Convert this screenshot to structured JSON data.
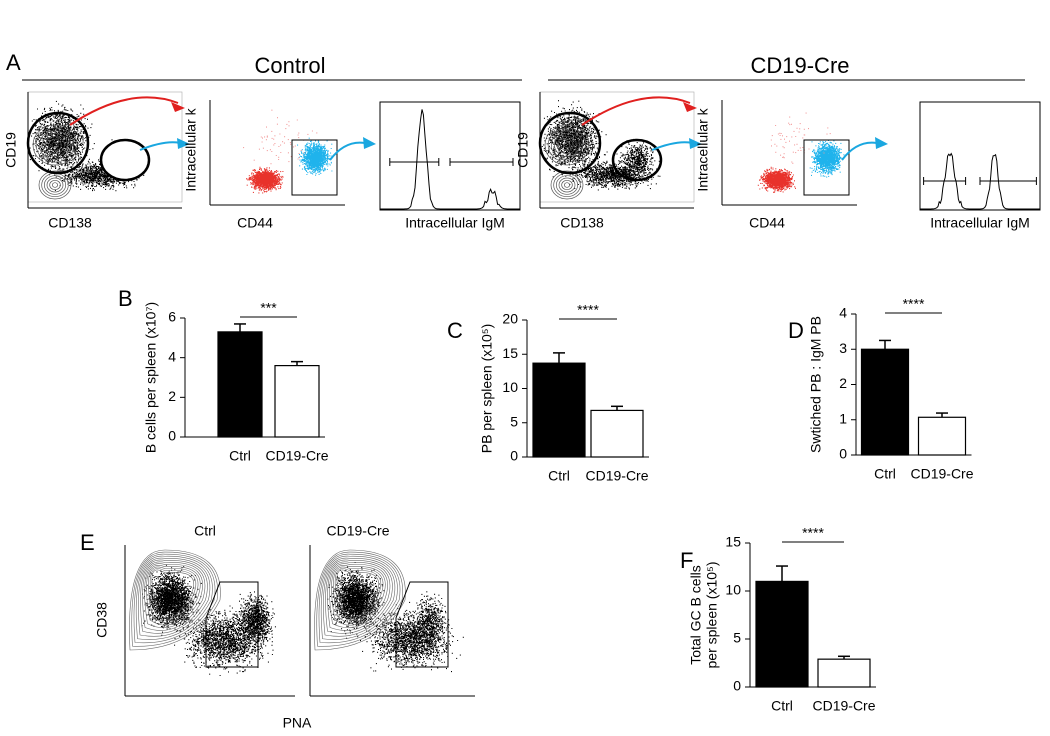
{
  "panel_a": {
    "letter": "A",
    "groups": [
      {
        "title": "Control",
        "axes": {
          "contour_y": "CD19",
          "contour_x": "CD138",
          "scatter_y": "Intracellular k",
          "scatter_x": "CD44",
          "hist_x": "Intracellular IgM"
        }
      },
      {
        "title": "CD19-Cre",
        "axes": {
          "contour_y": "CD19",
          "contour_x": "CD138",
          "scatter_y": "Intracellular k",
          "scatter_x": "CD44",
          "hist_x": "Intracellular IgM"
        }
      }
    ]
  },
  "panel_e": {
    "letter": "E",
    "plots": [
      "Ctrl",
      "CD19-Cre"
    ],
    "y_label": "CD38",
    "x_label": "PNA"
  },
  "chart_data": [
    {
      "type": "bar",
      "panel": "B",
      "ylabel": [
        "B cells per spleen (x10⁷)"
      ],
      "annotation": "***",
      "categories": [
        "Ctrl",
        "CD19-Cre"
      ],
      "values": [
        5.3,
        3.6
      ],
      "errors": [
        0.4,
        0.2
      ],
      "colors": [
        "#000000",
        "#ffffff"
      ],
      "ylim": [
        0,
        6
      ],
      "yticks": [
        0,
        2,
        4,
        6
      ]
    },
    {
      "type": "bar",
      "panel": "C",
      "ylabel": [
        "PB per spleen (x10⁵)"
      ],
      "annotation": "****",
      "categories": [
        "Ctrl",
        "CD19-Cre"
      ],
      "values": [
        13.7,
        6.8
      ],
      "errors": [
        1.5,
        0.6
      ],
      "colors": [
        "#000000",
        "#ffffff"
      ],
      "ylim": [
        0,
        20
      ],
      "yticks": [
        0,
        5,
        10,
        15,
        20
      ]
    },
    {
      "type": "bar",
      "panel": "D",
      "ylabel": [
        "Swtiched PB : IgM PB"
      ],
      "annotation": "****",
      "categories": [
        "Ctrl",
        "CD19-Cre"
      ],
      "values": [
        3.0,
        1.07
      ],
      "errors": [
        0.25,
        0.12
      ],
      "colors": [
        "#000000",
        "#ffffff"
      ],
      "ylim": [
        0,
        4
      ],
      "yticks": [
        0,
        1,
        2,
        3,
        4
      ]
    },
    {
      "type": "bar",
      "panel": "F",
      "ylabel": [
        "Total GC B cells",
        "per spleen (x10⁵)"
      ],
      "annotation": "****",
      "categories": [
        "Ctrl",
        "CD19-Cre"
      ],
      "values": [
        11,
        2.9
      ],
      "errors": [
        1.6,
        0.3
      ],
      "colors": [
        "#000000",
        "#ffffff"
      ],
      "ylim": [
        0,
        15
      ],
      "yticks": [
        0,
        5,
        10,
        15
      ]
    }
  ]
}
